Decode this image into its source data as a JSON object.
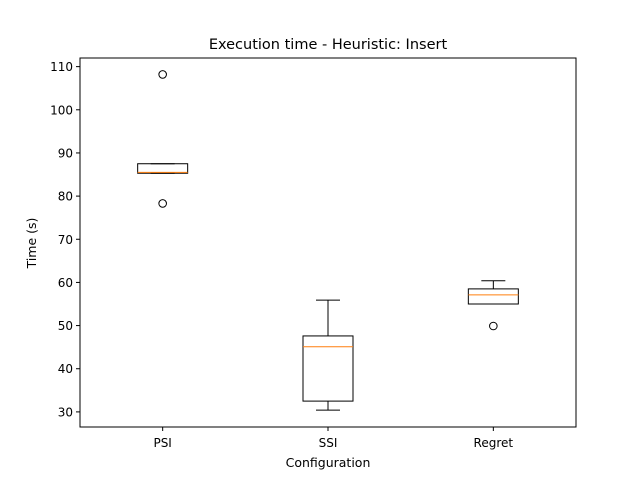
{
  "chart_data": {
    "type": "boxplot",
    "title": "Execution time - Heuristic: Insert",
    "xlabel": "Configuration",
    "ylabel": "Time (s)",
    "categories": [
      "PSI",
      "SSI",
      "Regret"
    ],
    "ylim": [
      26.5,
      112.0
    ],
    "yticks": [
      30,
      40,
      50,
      60,
      70,
      80,
      90,
      100,
      110
    ],
    "grid": false,
    "boxes": [
      {
        "category": "PSI",
        "whisker_low": 85.3,
        "q1": 85.3,
        "median": 85.5,
        "q3": 87.5,
        "whisker_high": 87.5,
        "outliers": [
          108.2,
          78.3
        ]
      },
      {
        "category": "SSI",
        "whisker_low": 30.4,
        "q1": 32.5,
        "median": 45.1,
        "q3": 47.6,
        "whisker_high": 55.9,
        "outliers": []
      },
      {
        "category": "Regret",
        "whisker_low": 55.0,
        "q1": 55.0,
        "median": 57.1,
        "q3": 58.5,
        "whisker_high": 60.4,
        "outliers": [
          49.9
        ]
      }
    ],
    "colors": {
      "box": "#000000",
      "median": "#ff7f0e",
      "background": "#ffffff"
    }
  }
}
